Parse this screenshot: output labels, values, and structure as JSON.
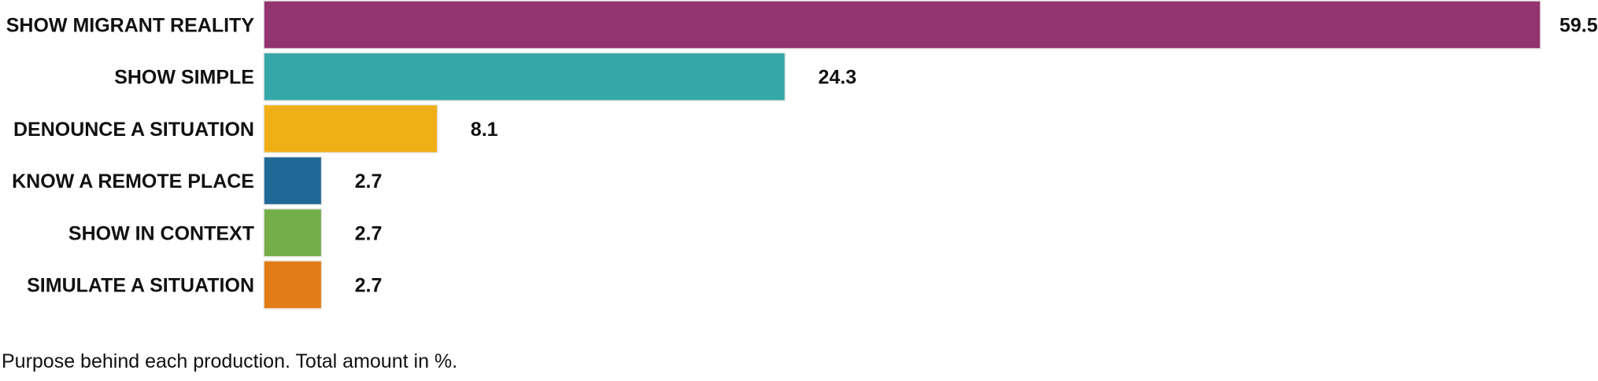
{
  "chart_data": {
    "type": "bar",
    "orientation": "horizontal",
    "categories": [
      "SHOW MIGRANT REALITY",
      "SHOW SIMPLE",
      "DENOUNCE A SITUATION",
      "KNOW A REMOTE PLACE",
      "SHOW IN CONTEXT",
      "SIMULATE A SITUATION"
    ],
    "values": [
      59.5,
      24.3,
      8.1,
      2.7,
      2.7,
      2.7
    ],
    "value_labels": [
      "59.5",
      "24.3",
      "8.1",
      "2.7",
      "2.7",
      "2.7"
    ],
    "colors": [
      "#93346e",
      "#36a7a8",
      "#efaf17",
      "#1e6896",
      "#73ae48",
      "#e27c16"
    ],
    "xlim": [
      0,
      59.5
    ],
    "grid": false,
    "title": "",
    "xlabel": "",
    "ylabel": ""
  },
  "caption": "Purpose behind each production. Total amount in %."
}
